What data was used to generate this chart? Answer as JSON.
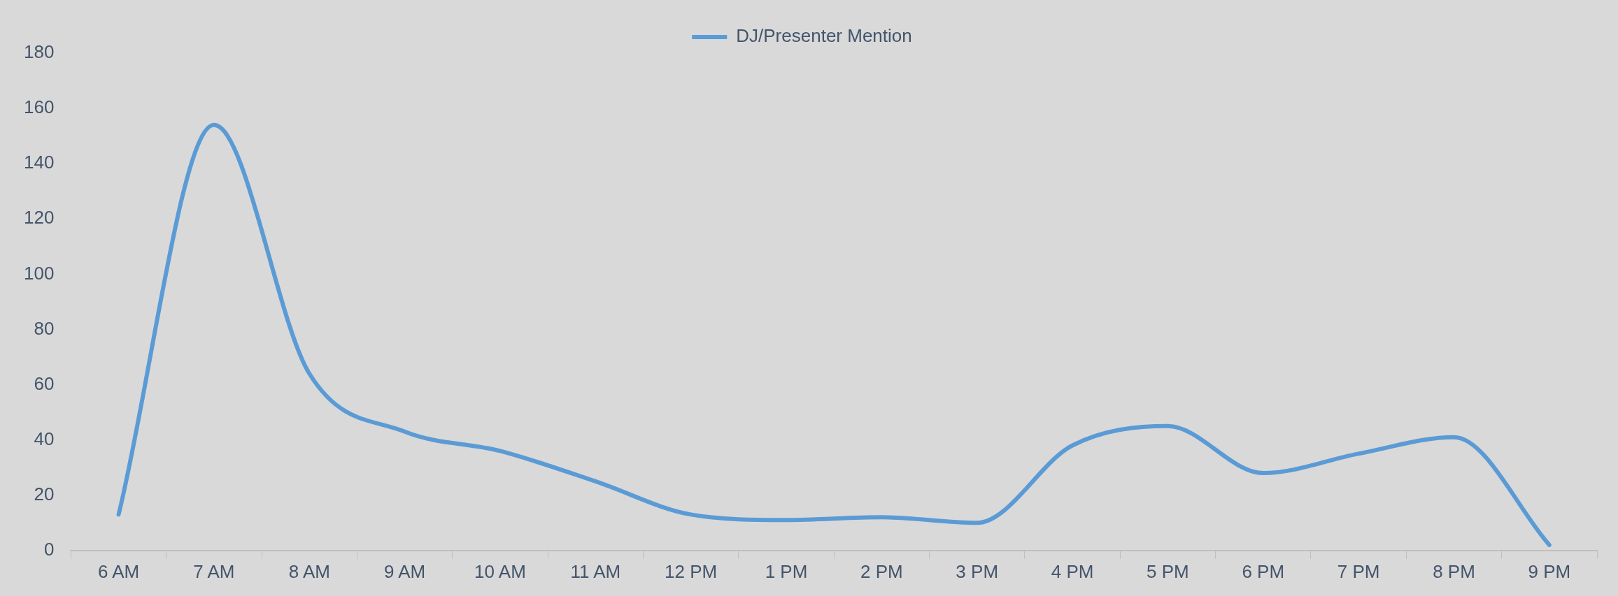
{
  "chart_data": {
    "type": "line",
    "categories": [
      "6 AM",
      "7 AM",
      "8 AM",
      "9 AM",
      "10 AM",
      "11 AM",
      "12 PM",
      "1 PM",
      "2 PM",
      "3 PM",
      "4 PM",
      "5 PM",
      "6 PM",
      "7 PM",
      "8 PM",
      "9 PM"
    ],
    "series": [
      {
        "name": "DJ/Presenter Mention",
        "color": "#5b9bd5",
        "values": [
          13,
          154,
          64,
          43,
          36,
          25,
          13,
          11,
          12,
          10,
          38,
          45,
          28,
          35,
          41,
          2
        ]
      }
    ],
    "ylim": [
      0,
      180
    ],
    "yticks": [
      0,
      20,
      40,
      60,
      80,
      100,
      120,
      140,
      160,
      180
    ],
    "grid": false,
    "legend": "top",
    "marker": "none",
    "line_style": "solid"
  }
}
